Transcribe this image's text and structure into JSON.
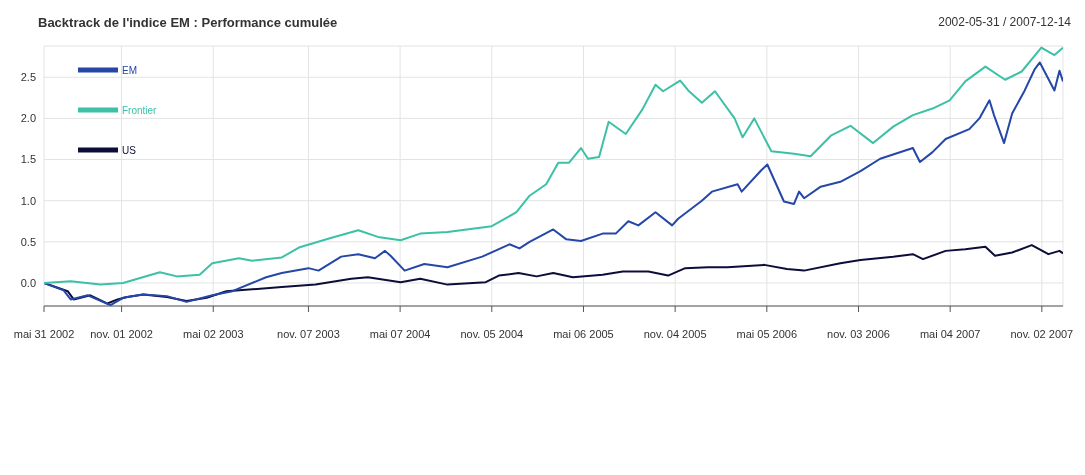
{
  "chart_data": {
    "type": "line",
    "title": "Backtrack de l'indice EM : Performance cumulée",
    "subtitle": "2002-05-31 / 2007-12-14",
    "xlim": [
      "2002-05-31",
      "2007-12-14"
    ],
    "xticks": [
      {
        "value": "2002-05-31",
        "label": "mai 31 2002"
      },
      {
        "value": "2002-11-01",
        "label": "nov. 01 2002"
      },
      {
        "value": "2003-05-02",
        "label": "mai 02 2003"
      },
      {
        "value": "2003-11-07",
        "label": "nov. 07 2003"
      },
      {
        "value": "2004-05-07",
        "label": "mai 07 2004"
      },
      {
        "value": "2004-11-05",
        "label": "nov. 05 2004"
      },
      {
        "value": "2005-05-06",
        "label": "mai 06 2005"
      },
      {
        "value": "2005-11-04",
        "label": "nov. 04 2005"
      },
      {
        "value": "2006-05-05",
        "label": "mai 05 2006"
      },
      {
        "value": "2006-11-03",
        "label": "nov. 03 2006"
      },
      {
        "value": "2007-05-04",
        "label": "mai 04 2007"
      },
      {
        "value": "2007-11-02",
        "label": "nov. 02 2007"
      }
    ],
    "ylim": [
      -0.28,
      2.88
    ],
    "yticks": [
      {
        "value": 0,
        "label": "0.0"
      },
      {
        "value": 0.5,
        "label": "0.5"
      },
      {
        "value": 1,
        "label": "1.0"
      },
      {
        "value": 1.5,
        "label": "1.5"
      },
      {
        "value": 2,
        "label": "2.0"
      },
      {
        "value": 2.5,
        "label": "2.5"
      }
    ],
    "grid": true,
    "legend": "top left",
    "line_style": "solid",
    "series": [
      {
        "name": "US",
        "color": "#0d0d3a",
        "x": [
          "2002-05-31",
          "2002-07-17",
          "2002-07-29",
          "2002-08-31",
          "2002-10-04",
          "2002-10-24",
          "2002-11-12",
          "2002-12-14",
          "2003-01-30",
          "2003-03-10",
          "2003-04-19",
          "2003-05-28",
          "2003-07-12",
          "2003-09-15",
          "2003-11-21",
          "2004-01-31",
          "2004-03-04",
          "2004-05-08",
          "2004-06-16",
          "2004-08-09",
          "2004-10-24",
          "2004-11-19",
          "2004-12-28",
          "2005-02-02",
          "2005-03-07",
          "2005-04-15",
          "2005-06-13",
          "2005-07-23",
          "2005-09-12",
          "2005-10-21",
          "2005-11-24",
          "2006-01-08",
          "2006-02-16",
          "2006-04-30",
          "2006-06-14",
          "2006-07-18",
          "2006-09-28",
          "2006-11-07",
          "2007-01-11",
          "2007-02-19",
          "2007-03-11",
          "2007-04-25",
          "2007-06-03",
          "2007-07-13",
          "2007-08-01",
          "2007-09-04",
          "2007-10-13",
          "2007-11-15",
          "2007-12-07",
          "2007-12-14"
        ],
        "values": [
          0,
          -0.1,
          -0.2,
          -0.15,
          -0.25,
          -0.2,
          -0.17,
          -0.14,
          -0.17,
          -0.22,
          -0.18,
          -0.1,
          -0.08,
          -0.05,
          -0.02,
          0.05,
          0.07,
          0.01,
          0.05,
          -0.02,
          0.01,
          0.09,
          0.12,
          0.08,
          0.12,
          0.07,
          0.1,
          0.14,
          0.14,
          0.09,
          0.18,
          0.19,
          0.19,
          0.22,
          0.17,
          0.15,
          0.24,
          0.28,
          0.32,
          0.35,
          0.29,
          0.39,
          0.41,
          0.44,
          0.33,
          0.37,
          0.46,
          0.35,
          0.39,
          0.36
        ]
      },
      {
        "name": "EM",
        "color": "#2447a8",
        "x": [
          "2002-05-31",
          "2002-07-09",
          "2002-07-23",
          "2002-08-26",
          "2002-10-10",
          "2002-11-04",
          "2002-12-14",
          "2003-01-30",
          "2003-03-10",
          "2003-04-30",
          "2003-06-09",
          "2003-08-15",
          "2003-09-15",
          "2003-11-07",
          "2003-11-27",
          "2004-01-11",
          "2004-02-14",
          "2004-03-18",
          "2004-04-07",
          "2004-04-18",
          "2004-05-16",
          "2004-06-24",
          "2004-08-09",
          "2004-10-17",
          "2004-12-10",
          "2004-12-30",
          "2005-01-19",
          "2005-03-07",
          "2005-04-02",
          "2005-05-01",
          "2005-06-13",
          "2005-07-09",
          "2005-08-03",
          "2005-08-23",
          "2005-09-26",
          "2005-10-29",
          "2005-11-10",
          "2005-12-27",
          "2006-01-16",
          "2006-03-08",
          "2006-03-16",
          "2006-04-24",
          "2006-05-06",
          "2006-06-08",
          "2006-06-28",
          "2006-07-08",
          "2006-07-18",
          "2006-08-20",
          "2006-09-28",
          "2006-11-07",
          "2006-12-16",
          "2007-02-19",
          "2007-03-05",
          "2007-03-30",
          "2007-04-25",
          "2007-06-11",
          "2007-07-01",
          "2007-07-21",
          "2007-07-30",
          "2007-08-19",
          "2007-09-04",
          "2007-09-29",
          "2007-10-19",
          "2007-10-29",
          "2007-11-27",
          "2007-12-07",
          "2007-12-14"
        ],
        "values": [
          0,
          -0.09,
          -0.2,
          -0.15,
          -0.27,
          -0.18,
          -0.14,
          -0.16,
          -0.23,
          -0.15,
          -0.1,
          0.07,
          0.12,
          0.18,
          0.15,
          0.32,
          0.35,
          0.3,
          0.39,
          0.33,
          0.15,
          0.23,
          0.19,
          0.32,
          0.47,
          0.42,
          0.5,
          0.65,
          0.53,
          0.51,
          0.6,
          0.6,
          0.75,
          0.7,
          0.86,
          0.7,
          0.78,
          1.0,
          1.11,
          1.2,
          1.11,
          1.37,
          1.44,
          0.99,
          0.96,
          1.11,
          1.03,
          1.17,
          1.23,
          1.36,
          1.51,
          1.64,
          1.47,
          1.59,
          1.75,
          1.87,
          2.0,
          2.22,
          2.04,
          1.7,
          2.06,
          2.34,
          2.6,
          2.68,
          2.34,
          2.58,
          2.45
        ]
      },
      {
        "name": "Frontier",
        "color": "#3cc1a6",
        "x": [
          "2002-05-31",
          "2002-07-23",
          "2002-09-20",
          "2002-11-04",
          "2003-01-16",
          "2003-02-19",
          "2003-04-05",
          "2003-04-30",
          "2003-06-22",
          "2003-07-18",
          "2003-09-15",
          "2003-10-19",
          "2003-12-23",
          "2004-02-14",
          "2004-03-24",
          "2004-05-08",
          "2004-06-16",
          "2004-08-09",
          "2004-11-05",
          "2004-12-24",
          "2005-01-19",
          "2005-02-21",
          "2005-03-17",
          "2005-04-07",
          "2005-05-01",
          "2005-05-15",
          "2005-06-06",
          "2005-06-25",
          "2005-07-29",
          "2005-08-31",
          "2005-09-26",
          "2005-10-11",
          "2005-11-14",
          "2005-11-30",
          "2005-12-27",
          "2006-01-22",
          "2006-03-02",
          "2006-03-18",
          "2006-04-10",
          "2006-05-14",
          "2006-06-28",
          "2006-07-31",
          "2006-09-09",
          "2006-10-18",
          "2006-12-02",
          "2007-01-11",
          "2007-02-19",
          "2007-03-30",
          "2007-05-03",
          "2007-06-03",
          "2007-07-13",
          "2007-08-21",
          "2007-09-23",
          "2007-11-01",
          "2007-11-27",
          "2007-12-14"
        ],
        "values": [
          0,
          0.02,
          -0.02,
          0,
          0.13,
          0.08,
          0.1,
          0.24,
          0.3,
          0.27,
          0.31,
          0.43,
          0.55,
          0.64,
          0.56,
          0.52,
          0.6,
          0.62,
          0.69,
          0.86,
          1.06,
          1.2,
          1.46,
          1.46,
          1.64,
          1.51,
          1.53,
          1.96,
          1.81,
          2.11,
          2.41,
          2.33,
          2.46,
          2.34,
          2.19,
          2.33,
          2.0,
          1.77,
          2.0,
          1.6,
          1.57,
          1.54,
          1.79,
          1.91,
          1.7,
          1.9,
          2.04,
          2.12,
          2.22,
          2.45,
          2.63,
          2.47,
          2.57,
          2.86,
          2.77,
          2.86
        ]
      }
    ]
  }
}
